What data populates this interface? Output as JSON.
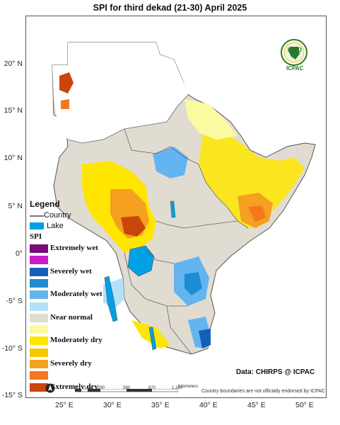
{
  "title": "SPI  for   third dekad (21-30) April 2025",
  "y_ticks": [
    "20° N",
    "15° N",
    "10° N",
    "5° N",
    "0°",
    "-5° S",
    "-10° S",
    "-15° S"
  ],
  "x_ticks": [
    "25° E",
    "30° E",
    "35° E",
    "40° E",
    "45° E",
    "50° E"
  ],
  "legend": {
    "title": "Legend",
    "country_label": "Country",
    "lake_label": "Lake",
    "spi_heading": "SPI",
    "items": [
      {
        "label": "Extremely wet",
        "color": "#7a0a7a"
      },
      {
        "label": "",
        "color": "#c81ec8"
      },
      {
        "label": "Severely wet",
        "color": "#1460b4"
      },
      {
        "label": "",
        "color": "#1e8cd2"
      },
      {
        "label": "Moderately wet",
        "color": "#64b4f0"
      },
      {
        "label": "",
        "color": "#b4e1fa"
      },
      {
        "label": "Near normal",
        "color": "#e1dcd2"
      },
      {
        "label": "",
        "color": "#fafaa0"
      },
      {
        "label": "Moderately dry",
        "color": "#ffe600"
      },
      {
        "label": "",
        "color": "#f5c800"
      },
      {
        "label": "Severely dry",
        "color": "#f5a01e"
      },
      {
        "label": "",
        "color": "#f5781e"
      },
      {
        "label": "Extremely dry",
        "color": "#c8460a"
      }
    ]
  },
  "lake_color": "#00a0e6",
  "data_source": "Data: CHIRPS @ ICPAC",
  "disclaimer": "Country boundaries are not officially endorsed by ICPAC",
  "scale_bar": {
    "unit": "Kilometers",
    "labels": [
      "0",
      "145",
      "290",
      "580",
      "870",
      "1,160"
    ]
  },
  "logo": {
    "top": "IGAD",
    "bottom": "ICPAC"
  }
}
